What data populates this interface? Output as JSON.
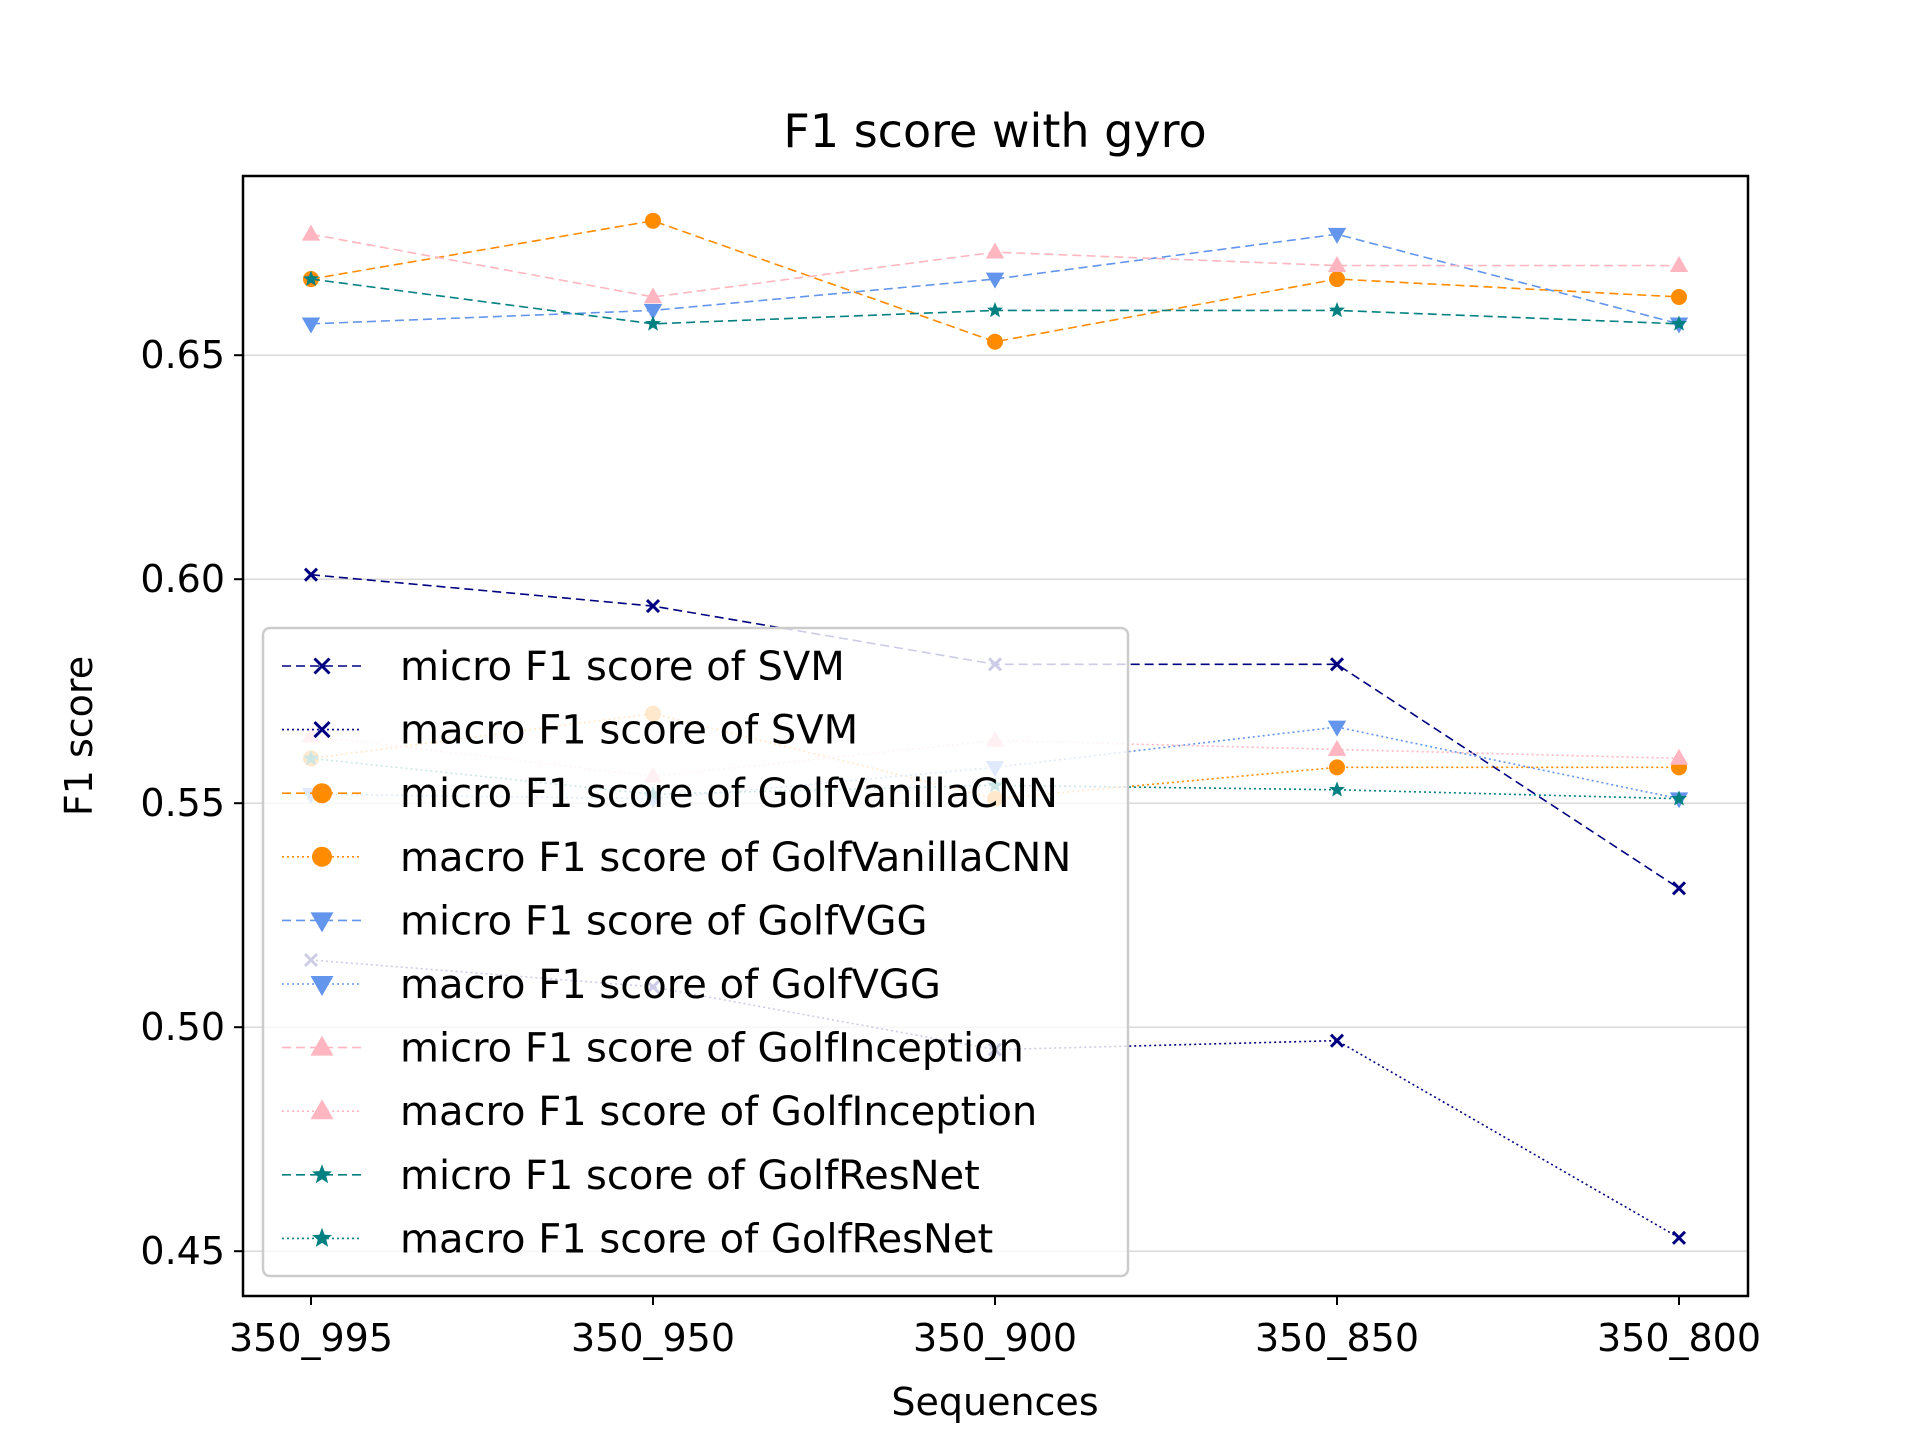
{
  "chart_data": {
    "type": "line",
    "title": "F1 score with gyro",
    "xlabel": "Sequences",
    "ylabel": "F1 score",
    "categories": [
      "350_995",
      "350_950",
      "350_900",
      "350_850",
      "350_800"
    ],
    "ylim": [
      0.44,
      0.69
    ],
    "yticks": [
      0.45,
      0.5,
      0.55,
      0.6,
      0.65
    ],
    "ytick_labels": [
      "0.45",
      "0.50",
      "0.55",
      "0.60",
      "0.65"
    ],
    "grid": "horizontal",
    "legend_position": "lower-left",
    "series": [
      {
        "name": "micro F1 score of SVM",
        "color": "#000080",
        "linestyle": "dashed",
        "marker": "x",
        "values": [
          0.601,
          0.594,
          0.581,
          0.581,
          0.531
        ]
      },
      {
        "name": "macro F1 score of SVM",
        "color": "#000080",
        "linestyle": "dotted",
        "marker": "x",
        "values": [
          0.515,
          0.509,
          0.495,
          0.497,
          0.453
        ]
      },
      {
        "name": "micro F1 score of GolfVanillaCNN",
        "color": "#ff8c00",
        "linestyle": "dashed",
        "marker": "circle",
        "values": [
          0.667,
          0.68,
          0.653,
          0.667,
          0.663
        ]
      },
      {
        "name": "macro F1 score of GolfVanillaCNN",
        "color": "#ff8c00",
        "linestyle": "dotted",
        "marker": "circle",
        "values": [
          0.56,
          0.57,
          0.551,
          0.558,
          0.558
        ]
      },
      {
        "name": "micro F1 score of GolfVGG",
        "color": "#6495ed",
        "linestyle": "dashed",
        "marker": "triangle-down",
        "values": [
          0.657,
          0.66,
          0.667,
          0.677,
          0.657
        ]
      },
      {
        "name": "macro F1 score of GolfVGG",
        "color": "#6495ed",
        "linestyle": "dotted",
        "marker": "triangle-down",
        "values": [
          0.552,
          0.551,
          0.558,
          0.567,
          0.551
        ]
      },
      {
        "name": "micro F1 score of GolfInception",
        "color": "#ffb6c1",
        "linestyle": "dashed",
        "marker": "triangle-up",
        "values": [
          0.677,
          0.663,
          0.673,
          0.67,
          0.67
        ]
      },
      {
        "name": "macro F1 score of GolfInception",
        "color": "#ffb6c1",
        "linestyle": "dotted",
        "marker": "triangle-up",
        "values": [
          0.565,
          0.556,
          0.564,
          0.562,
          0.56
        ]
      },
      {
        "name": "micro F1 score of GolfResNet",
        "color": "#008080",
        "linestyle": "dashed",
        "marker": "star",
        "values": [
          0.667,
          0.657,
          0.66,
          0.66,
          0.657
        ]
      },
      {
        "name": "macro F1 score of GolfResNet",
        "color": "#008080",
        "linestyle": "dotted",
        "marker": "star",
        "values": [
          0.56,
          0.552,
          0.554,
          0.553,
          0.551
        ]
      }
    ]
  }
}
